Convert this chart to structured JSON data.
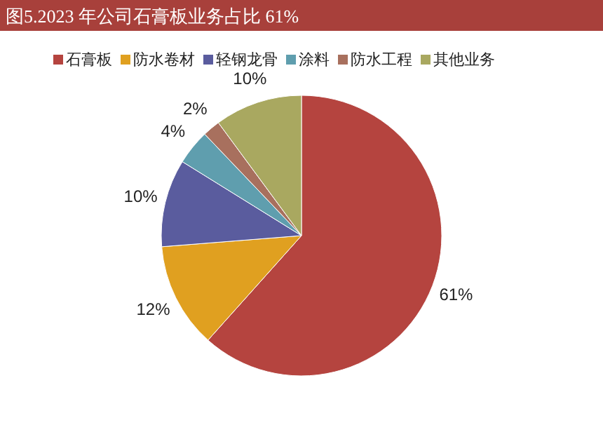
{
  "chart_data": {
    "type": "pie",
    "title": "图5.2023 年公司石膏板业务占比 61%",
    "categories": [
      "石膏板",
      "防水卷材",
      "轻钢龙骨",
      "涂料",
      "防水工程",
      "其他业务"
    ],
    "values": [
      61,
      12,
      10,
      4,
      2,
      10
    ],
    "colors": [
      "#b5443f",
      "#e0a020",
      "#5a5c9e",
      "#5f9eae",
      "#a8705e",
      "#a9a860"
    ],
    "value_labels": [
      "61%",
      "12%",
      "10%",
      "4%",
      "2%",
      "10%"
    ],
    "legend": "top"
  }
}
